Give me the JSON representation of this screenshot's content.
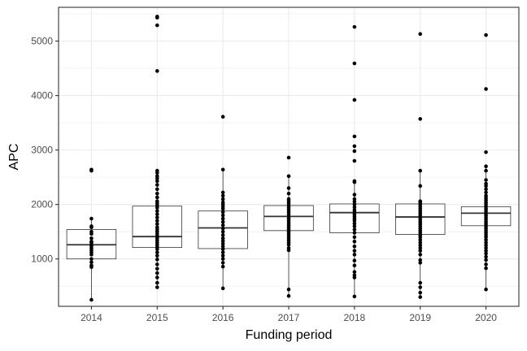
{
  "chart_data": {
    "type": "box",
    "title": "",
    "xlabel": "Funding period",
    "ylabel": "APC",
    "ylim": [
      130,
      5620
    ],
    "yticks": [
      1000,
      2000,
      3000,
      4000,
      5000
    ],
    "grid": true,
    "categories": [
      "2014",
      "2015",
      "2016",
      "2017",
      "2018",
      "2019",
      "2020"
    ],
    "boxes": [
      {
        "category": "2014",
        "q1": 1000,
        "median": 1260,
        "q3": 1540,
        "whisker_low": 250,
        "whisker_high": 1760
      },
      {
        "category": "2015",
        "q1": 1210,
        "median": 1410,
        "q3": 1970,
        "whisker_low": 480,
        "whisker_high": 2620
      },
      {
        "category": "2016",
        "q1": 1190,
        "median": 1570,
        "q3": 1880,
        "whisker_low": 460,
        "whisker_high": 2640
      },
      {
        "category": "2017",
        "q1": 1520,
        "median": 1780,
        "q3": 1980,
        "whisker_low": 320,
        "whisker_high": 2520
      },
      {
        "category": "2018",
        "q1": 1480,
        "median": 1850,
        "q3": 2010,
        "whisker_low": 310,
        "whisker_high": 2420
      },
      {
        "category": "2019",
        "q1": 1450,
        "median": 1770,
        "q3": 2010,
        "whisker_low": 300,
        "whisker_high": 2620
      },
      {
        "category": "2020",
        "q1": 1610,
        "median": 1840,
        "q3": 1960,
        "whisker_low": 440,
        "whisker_high": 2700
      }
    ],
    "points": [
      {
        "category": "2014",
        "values": [
          2640,
          2620,
          1740,
          1600,
          1580,
          1500,
          1460,
          1380,
          1320,
          1300,
          1260,
          1240,
          1200,
          1160,
          1120,
          1080,
          1000,
          940,
          880,
          850,
          250
        ]
      },
      {
        "category": "2015",
        "values": [
          5450,
          5430,
          5290,
          4450,
          2620,
          2580,
          2520,
          2480,
          2430,
          2360,
          2280,
          2200,
          2130,
          2060,
          2020,
          1980,
          1940,
          1880,
          1820,
          1760,
          1700,
          1640,
          1580,
          1540,
          1500,
          1460,
          1420,
          1380,
          1340,
          1300,
          1260,
          1220,
          1180,
          1120,
          1060,
          990,
          900,
          820,
          740,
          660,
          560,
          480
        ]
      },
      {
        "category": "2016",
        "values": [
          3610,
          2640,
          2220,
          2160,
          2100,
          2040,
          2000,
          1960,
          1920,
          1860,
          1800,
          1740,
          1680,
          1620,
          1560,
          1500,
          1440,
          1380,
          1330,
          1280,
          1230,
          1180,
          1120,
          1060,
          1000,
          930,
          860,
          460
        ]
      },
      {
        "category": "2017",
        "values": [
          2860,
          2520,
          2300,
          2200,
          2100,
          2060,
          2020,
          1980,
          1940,
          1900,
          1860,
          1820,
          1780,
          1740,
          1700,
          1660,
          1620,
          1580,
          1540,
          1500,
          1460,
          1420,
          1380,
          1340,
          1300,
          1260,
          1200,
          1160,
          440,
          320
        ]
      },
      {
        "category": "2018",
        "values": [
          5260,
          4590,
          3920,
          3250,
          3070,
          2980,
          2800,
          2430,
          2410,
          2180,
          2100,
          2050,
          2000,
          1950,
          1900,
          1860,
          1820,
          1780,
          1740,
          1700,
          1650,
          1600,
          1540,
          1480,
          1400,
          1320,
          1230,
          1150,
          1080,
          970,
          880,
          760,
          700,
          660,
          310
        ]
      },
      {
        "category": "2019",
        "values": [
          5130,
          3570,
          2620,
          2340,
          2060,
          2040,
          2000,
          1960,
          1920,
          1880,
          1840,
          1800,
          1760,
          1720,
          1680,
          1640,
          1600,
          1560,
          1520,
          1480,
          1440,
          1400,
          1350,
          1300,
          1250,
          1200,
          1150,
          1080,
          980,
          930,
          560,
          480,
          380,
          300
        ]
      },
      {
        "category": "2020",
        "values": [
          5110,
          4120,
          2960,
          2700,
          2620,
          2450,
          2380,
          2340,
          2280,
          2220,
          2160,
          2120,
          2080,
          2040,
          2000,
          1960,
          1920,
          1880,
          1840,
          1800,
          1760,
          1720,
          1680,
          1640,
          1600,
          1560,
          1520,
          1480,
          1440,
          1400,
          1350,
          1300,
          1250,
          1200,
          1150,
          1100,
          1040,
          980,
          900,
          830,
          440
        ]
      }
    ]
  }
}
